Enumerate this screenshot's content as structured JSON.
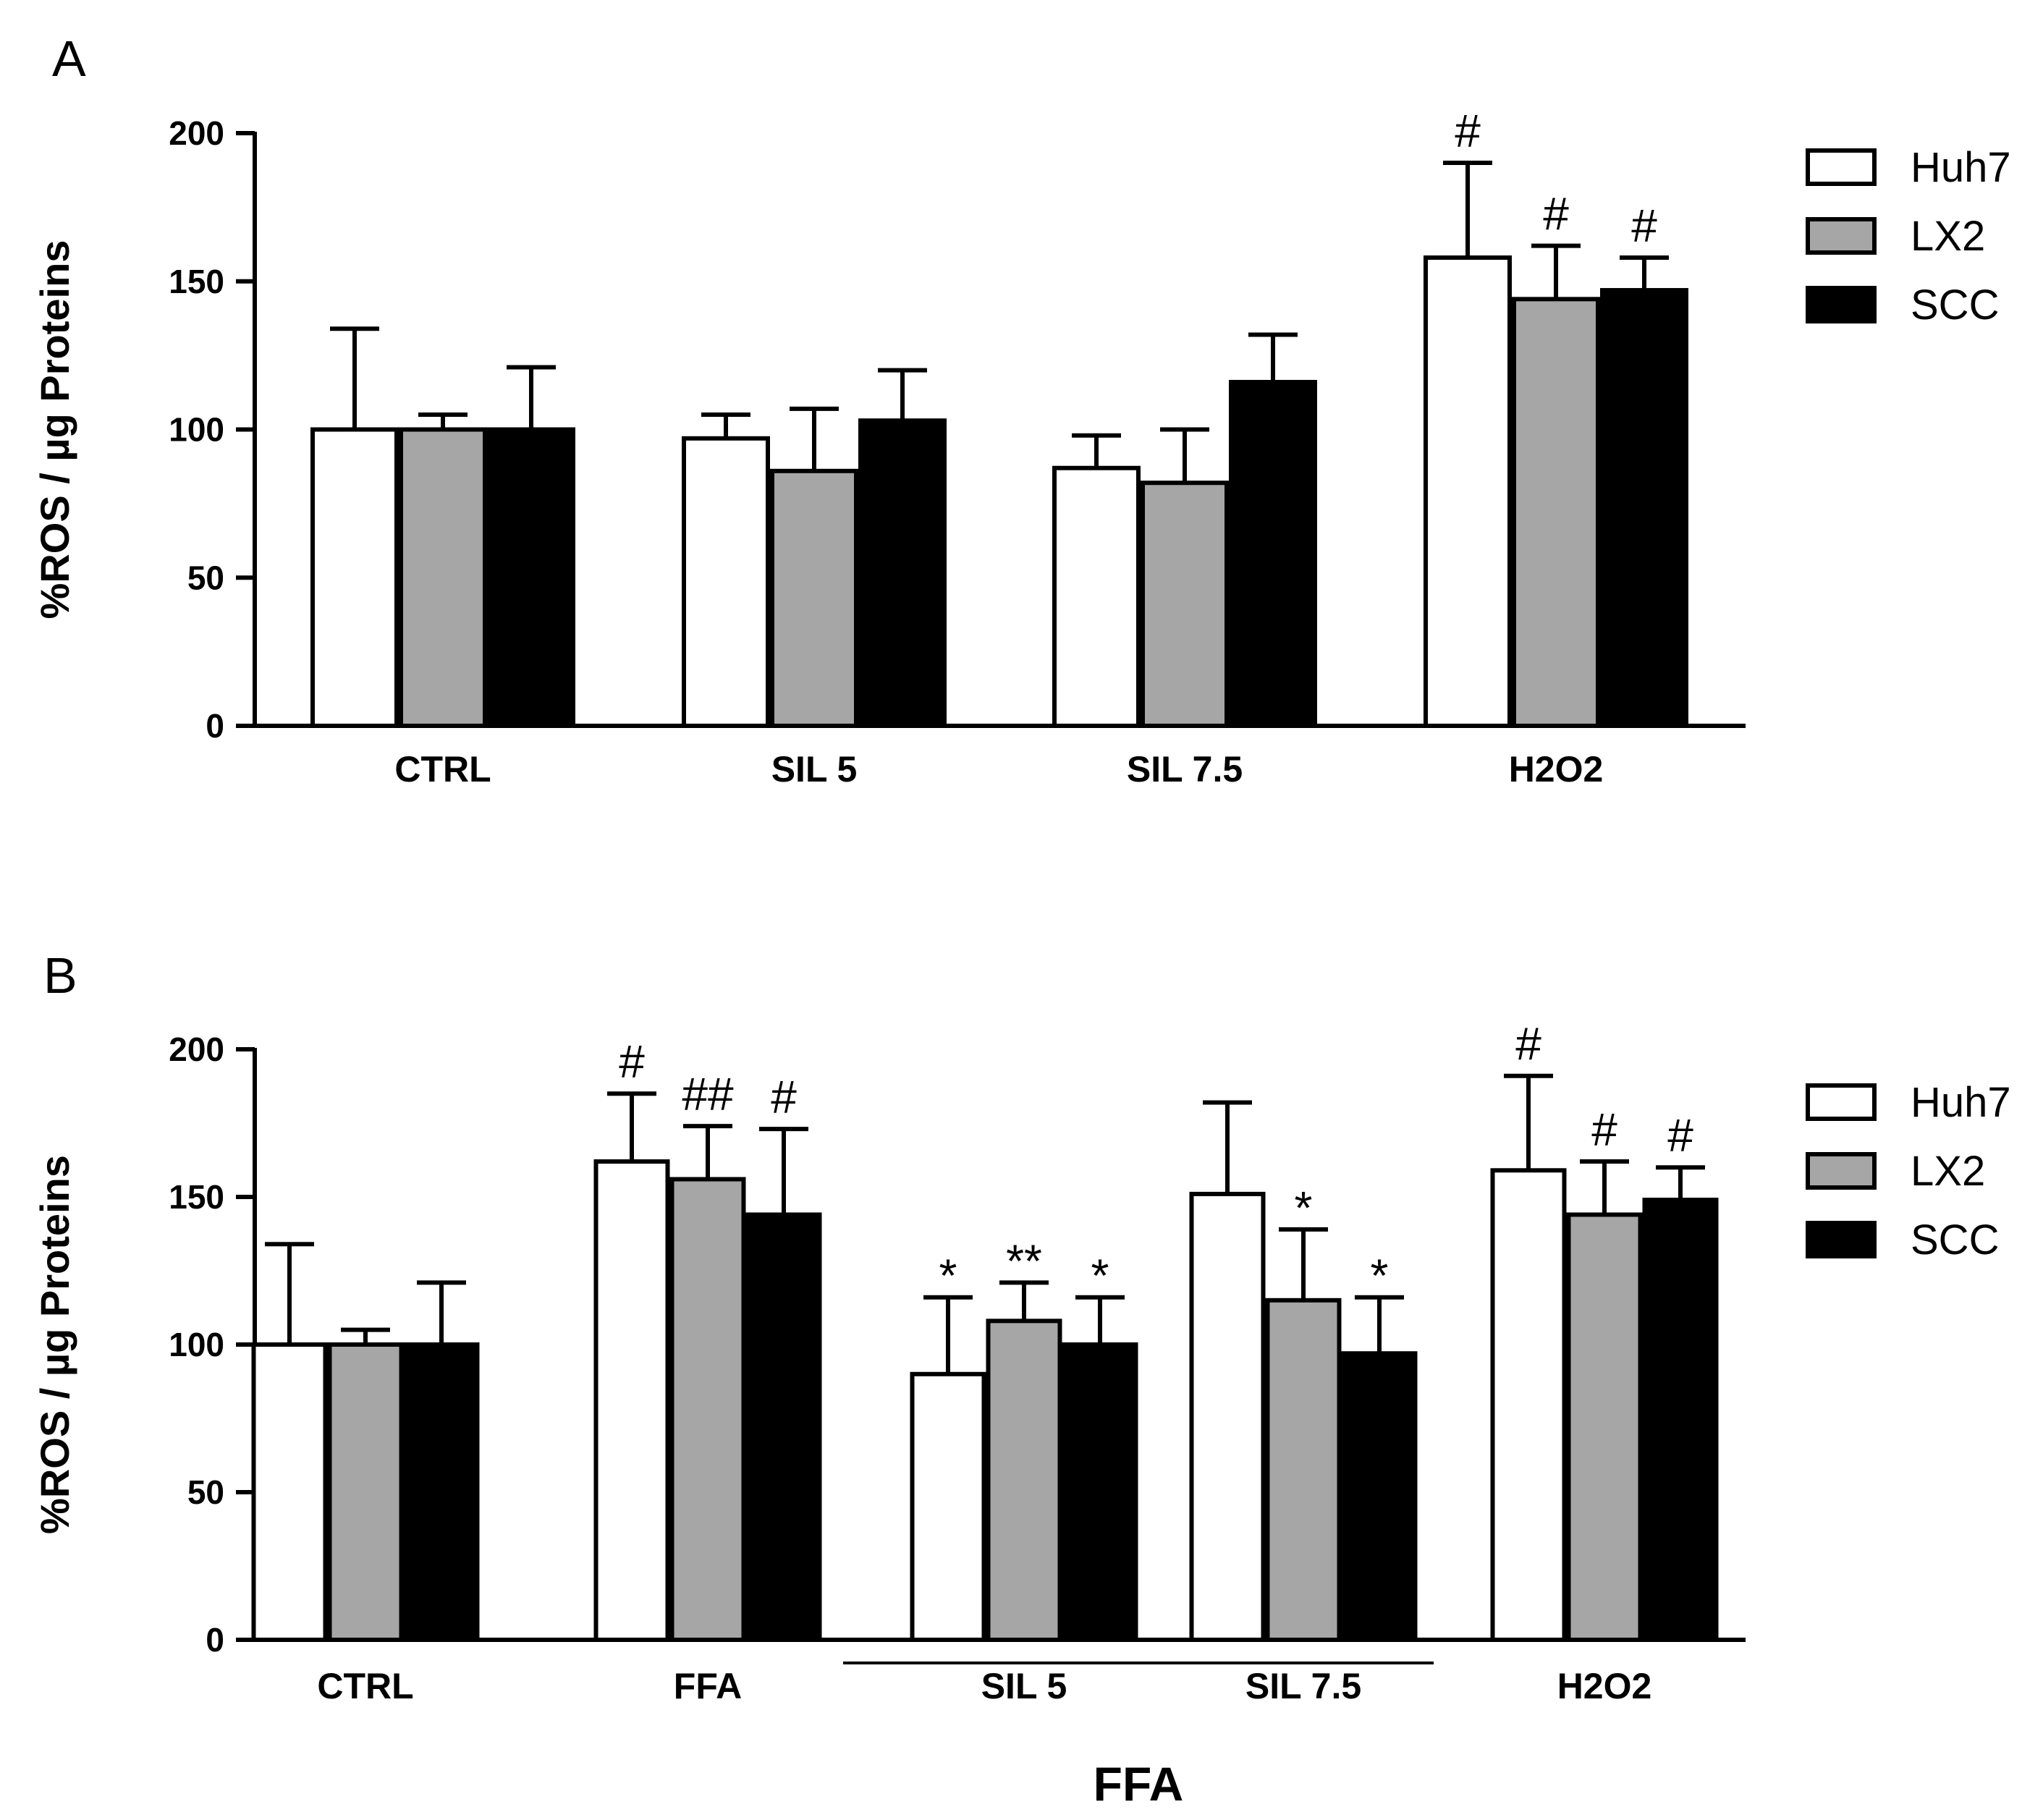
{
  "colors": {
    "Huh7": "#ffffff",
    "LX2": "#a6a6a6",
    "SCC": "#000000"
  },
  "chart_data": [
    {
      "panel": "A",
      "type": "bar",
      "ylabel": "%ROS / µg Proteins",
      "ylim": [
        0,
        200
      ],
      "yticks": [
        "0",
        "50",
        "100",
        "150",
        "200"
      ],
      "categories": [
        "CTRL",
        "SIL 5",
        "SIL 7.5",
        "H2O2"
      ],
      "series": [
        {
          "name": "Huh7",
          "values": [
            100,
            97,
            87,
            158
          ],
          "errors": [
            34,
            8,
            11,
            32
          ],
          "sig": [
            "",
            "",
            "",
            "#"
          ]
        },
        {
          "name": "LX2",
          "values": [
            100,
            86,
            82,
            144
          ],
          "errors": [
            5,
            21,
            18,
            18
          ],
          "sig": [
            "",
            "",
            "",
            "#"
          ]
        },
        {
          "name": "SCC",
          "values": [
            100,
            103,
            116,
            147
          ],
          "errors": [
            21,
            17,
            16,
            11
          ],
          "sig": [
            "",
            "",
            "",
            "#"
          ]
        }
      ],
      "bracket": null
    },
    {
      "panel": "B",
      "type": "bar",
      "ylabel": "%ROS / µg Proteins",
      "ylim": [
        0,
        200
      ],
      "yticks": [
        "0",
        "50",
        "100",
        "150",
        "200"
      ],
      "categories": [
        "CTRL",
        "FFA",
        "SIL 5",
        "SIL 7.5",
        "H2O2"
      ],
      "series": [
        {
          "name": "Huh7",
          "values": [
            100,
            162,
            90,
            151,
            159
          ],
          "errors": [
            34,
            23,
            26,
            31,
            32
          ],
          "sig": [
            "",
            "#",
            "*",
            "",
            "#"
          ]
        },
        {
          "name": "LX2",
          "values": [
            100,
            156,
            108,
            115,
            144
          ],
          "errors": [
            5,
            18,
            13,
            24,
            18
          ],
          "sig": [
            "",
            "##",
            "**",
            "*",
            "#"
          ]
        },
        {
          "name": "SCC",
          "values": [
            100,
            144,
            100,
            97,
            149
          ],
          "errors": [
            21,
            29,
            16,
            19,
            11
          ],
          "sig": [
            "",
            "#",
            "*",
            "*",
            "#"
          ]
        }
      ],
      "bracket": {
        "label": "FFA",
        "from": 2,
        "to": 3
      }
    }
  ]
}
